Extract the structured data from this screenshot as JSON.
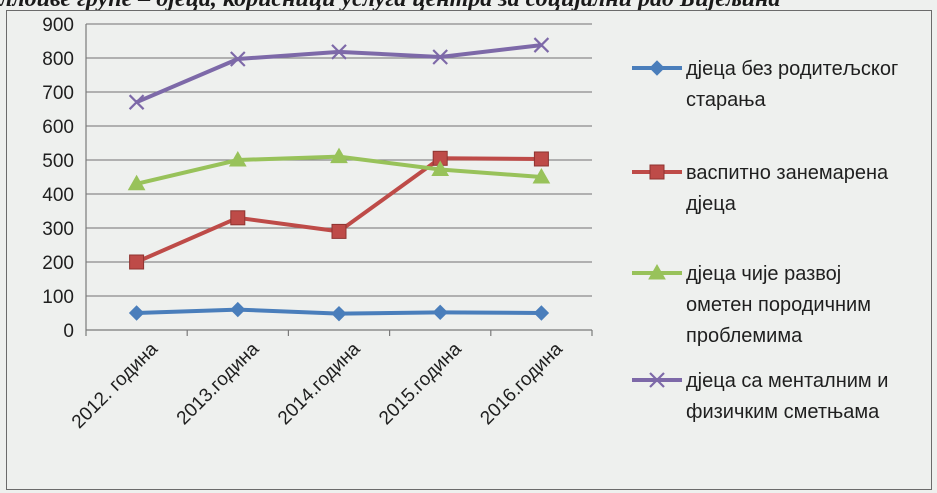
{
  "title": "ллоиве групе – дјеца, корисници услуга центра за социјални рад Бијељина",
  "chart_data": {
    "type": "line",
    "categories": [
      "2012. година",
      "2013.година",
      "2014.година",
      "2015.година",
      "2016.година"
    ],
    "ylim": [
      0,
      900
    ],
    "yticks": [
      0,
      100,
      200,
      300,
      400,
      500,
      600,
      700,
      800,
      900
    ],
    "grid": true,
    "legend_position": "right",
    "series": [
      {
        "name": "дјеца без родитељског старања",
        "legend_lines": [
          "дјеца без родитељског",
          "старања"
        ],
        "values": [
          50,
          60,
          48,
          52,
          50
        ],
        "color": "#4a7ebb",
        "marker": "diamond"
      },
      {
        "name": "васпитно занемарена дјеца",
        "legend_lines": [
          "васпитно занемарена",
          "дјеца"
        ],
        "values": [
          200,
          330,
          290,
          505,
          503
        ],
        "color": "#be4b48",
        "marker": "square"
      },
      {
        "name": "дјеца чије развој ометен породичним проблемима",
        "legend_lines": [
          "дјеца чије развој",
          "ометен породичним",
          "проблемима"
        ],
        "values": [
          430,
          500,
          510,
          472,
          450
        ],
        "color": "#98c25a",
        "marker": "triangle"
      },
      {
        "name": "дјеца са менталним и физичким сметњама",
        "legend_lines": [
          "дјеца са менталним и",
          "физичким сметњама"
        ],
        "values": [
          670,
          797,
          818,
          803,
          838
        ],
        "color": "#7d69a8",
        "marker": "x"
      }
    ]
  }
}
